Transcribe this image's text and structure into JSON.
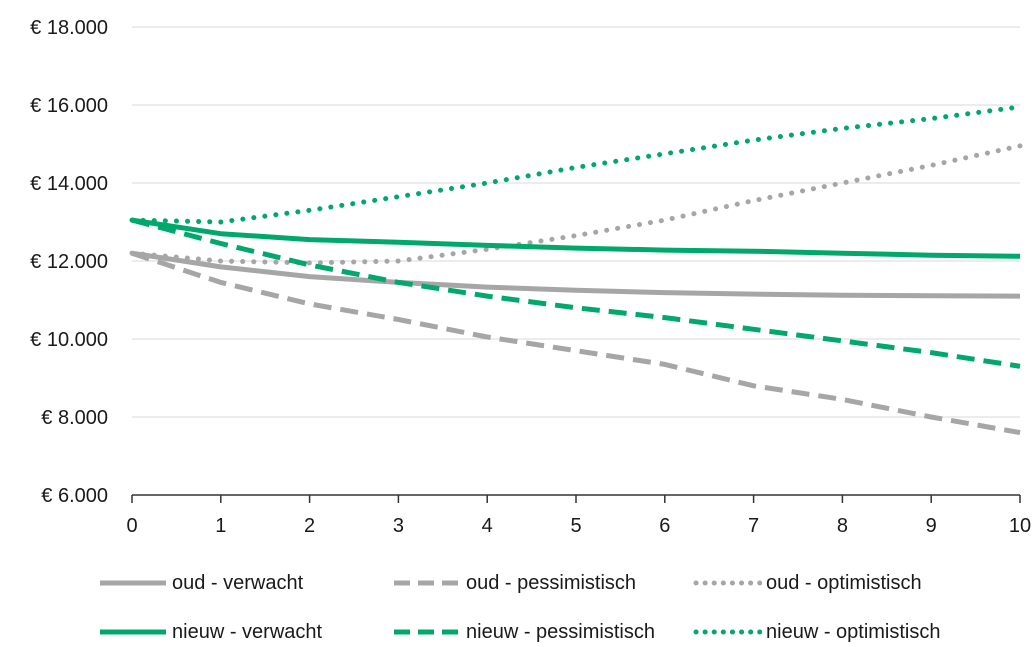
{
  "chart_data": {
    "type": "line",
    "x": [
      0,
      1,
      2,
      3,
      4,
      5,
      6,
      7,
      8,
      9,
      10
    ],
    "x_tick_labels": [
      "0",
      "1",
      "2",
      "3",
      "4",
      "5",
      "6",
      "7",
      "8",
      "9",
      "10"
    ],
    "y_tick_labels": [
      "€ 6.000",
      "€ 8.000",
      "€ 10.000",
      "€ 12.000",
      "€ 14.000",
      "€ 16.000",
      "€ 18.000"
    ],
    "y_ticks": [
      6000,
      8000,
      10000,
      12000,
      14000,
      16000,
      18000
    ],
    "ylim": [
      6000,
      18000
    ],
    "xlim": [
      0,
      10
    ],
    "grid": "horizontal",
    "legend_position": "bottom",
    "series": [
      {
        "name": "oud - verwacht",
        "color": "#a6a6a6",
        "style": "solid",
        "values": [
          12200,
          11850,
          11600,
          11450,
          11330,
          11250,
          11190,
          11150,
          11120,
          11110,
          11100
        ]
      },
      {
        "name": "oud - pessimistisch",
        "color": "#a6a6a6",
        "style": "dashed",
        "values": [
          12200,
          11450,
          10900,
          10500,
          10050,
          9700,
          9350,
          8800,
          8450,
          8000,
          7600
        ]
      },
      {
        "name": "oud - optimistisch",
        "color": "#a6a6a6",
        "style": "dotted",
        "values": [
          12200,
          12000,
          11950,
          12000,
          12300,
          12650,
          13050,
          13550,
          14000,
          14450,
          14950
        ]
      },
      {
        "name": "nieuw - verwacht",
        "color": "#00a86b",
        "style": "solid",
        "values": [
          13050,
          12700,
          12550,
          12480,
          12400,
          12330,
          12280,
          12250,
          12200,
          12150,
          12120
        ]
      },
      {
        "name": "nieuw - pessimistisch",
        "color": "#00a86b",
        "style": "dashed",
        "values": [
          13050,
          12450,
          11900,
          11450,
          11100,
          10800,
          10550,
          10250,
          9950,
          9650,
          9300
        ]
      },
      {
        "name": "nieuw - optimistisch",
        "color": "#00a86b",
        "style": "dotted",
        "values": [
          13050,
          13000,
          13300,
          13650,
          14000,
          14400,
          14750,
          15100,
          15400,
          15650,
          15950
        ]
      }
    ]
  }
}
